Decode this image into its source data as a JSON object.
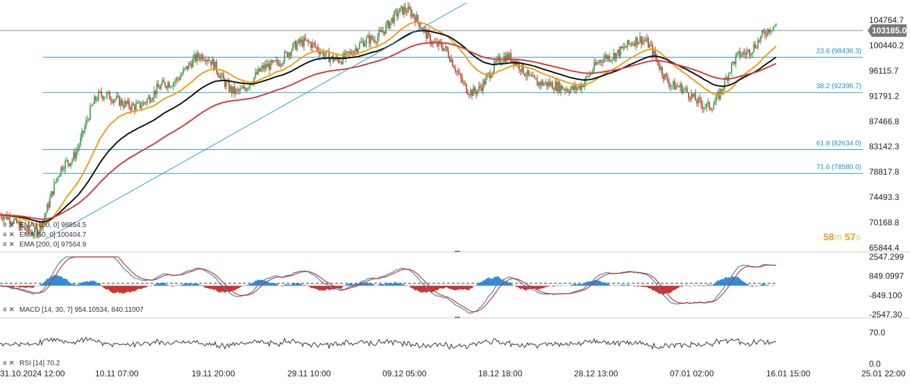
{
  "chart_data": [
    {
      "type": "candlestick",
      "instrument_price_tag": "103185.0",
      "y_ticks": [
        "104764.7",
        "100440.2",
        "96115.7",
        "91791.2",
        "87466.8",
        "83142.3",
        "78817.8",
        "74493.3",
        "70168.8",
        "65844.4"
      ],
      "ylim": [
        65844.4,
        104764.7
      ],
      "x_ticks": [
        "31.10.2024  12:00",
        "10.11  07:00",
        "19.11  20:00",
        "29.11  10:00",
        "09.12  05:00",
        "18.12  18:00",
        "28.12  13:00",
        "07.01  02:00",
        "16.01  15:00",
        "25.01  22:00"
      ],
      "fibonacci_levels": [
        {
          "label": "23.6 (98436.3)",
          "value": 98436.3
        },
        {
          "label": "38.2 (92396.7)",
          "value": 92396.7
        },
        {
          "label": "61.8 (82634.0)",
          "value": 82634.0
        },
        {
          "label": "71.6 (78580.0)",
          "value": 78580.0
        }
      ],
      "price_anchor_points": [
        {
          "x": "31.10.2024 12:00",
          "y": 71500
        },
        {
          "x": "05.11 00:00",
          "y": 68500
        },
        {
          "x": "10.11 07:00",
          "y": 80500
        },
        {
          "x": "13.11 00:00",
          "y": 92000
        },
        {
          "x": "15.11 00:00",
          "y": 90000
        },
        {
          "x": "19.11 20:00",
          "y": 94000
        },
        {
          "x": "22.11 00:00",
          "y": 98700
        },
        {
          "x": "26.11 00:00",
          "y": 92500
        },
        {
          "x": "29.11 10:00",
          "y": 97000
        },
        {
          "x": "04.12 00:00",
          "y": 101000
        },
        {
          "x": "09.12 05:00",
          "y": 98000
        },
        {
          "x": "13.12 00:00",
          "y": 101500
        },
        {
          "x": "16.12 12:00",
          "y": 106500
        },
        {
          "x": "18.12 18:00",
          "y": 100500
        },
        {
          "x": "20.12 00:00",
          "y": 92500
        },
        {
          "x": "24.12 00:00",
          "y": 98500
        },
        {
          "x": "28.12 13:00",
          "y": 94000
        },
        {
          "x": "31.12 00:00",
          "y": 93000
        },
        {
          "x": "05.01 00:00",
          "y": 98500
        },
        {
          "x": "07.01 02:00",
          "y": 101500
        },
        {
          "x": "10.01 00:00",
          "y": 93500
        },
        {
          "x": "13.01 00:00",
          "y": 90000
        },
        {
          "x": "16.01 15:00",
          "y": 99000
        },
        {
          "x": "20.01 00:00",
          "y": 103800
        }
      ],
      "series": [
        {
          "name": "EMA [100, 0]",
          "value": "98854.5",
          "color": "#111111"
        },
        {
          "name": "EMA [50, 0]",
          "value": "100404.7",
          "color": "#f39c12"
        },
        {
          "name": "EMA [200, 0]",
          "value": "97564.9",
          "color": "#d63a3a"
        }
      ],
      "countdown": {
        "minutes": "58",
        "minutes_unit": "m",
        "seconds": "57",
        "seconds_unit": "s"
      }
    },
    {
      "type": "macd",
      "legend": "MACD [14, 30, 7]  954.10534,   840.11007",
      "y_ticks": [
        "2547.299",
        "849.0997",
        "-849.100",
        "-2547.30"
      ],
      "ylim": [
        -2547.3,
        2547.3
      ]
    },
    {
      "type": "rsi",
      "legend": "RSI [14]  70.2",
      "y_ticks": [
        "70.0",
        "0.0"
      ],
      "ylim": [
        0,
        100
      ],
      "last_value": 70.2
    }
  ]
}
